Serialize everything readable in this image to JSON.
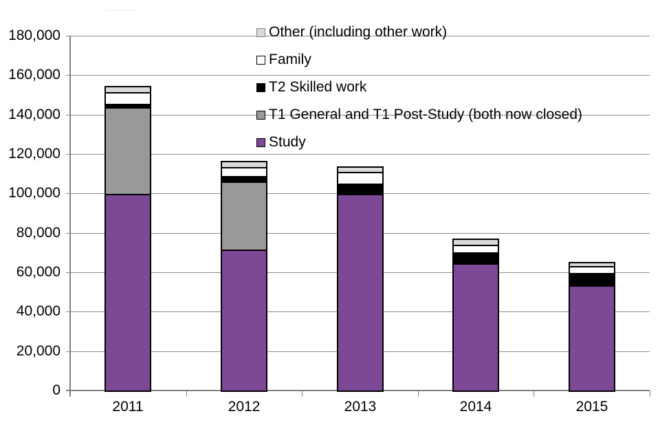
{
  "chart_data": {
    "type": "bar",
    "stacked": true,
    "title": "",
    "xlabel": "",
    "ylabel": "",
    "grid": true,
    "categories": [
      "2011",
      "2012",
      "2013",
      "2014",
      "2015"
    ],
    "series": [
      {
        "name": "Study",
        "color": "#7D4997",
        "values": [
          99500,
          71000,
          99400,
          64300,
          53000
        ]
      },
      {
        "name": "T1 General and T1 Post-Study (both now closed)",
        "color": "#999999",
        "values": [
          43700,
          34800,
          700,
          0,
          0
        ]
      },
      {
        "name": "T2 Skilled work",
        "color": "#000000",
        "values": [
          2000,
          2800,
          4400,
          5600,
          6400
        ]
      },
      {
        "name": "Family",
        "color": "#FFFFFF",
        "values": [
          5900,
          4400,
          6200,
          3800,
          3500
        ]
      },
      {
        "name": "Other (including other work)",
        "color": "#D9D9D9",
        "values": [
          2900,
          2800,
          2200,
          2600,
          1800
        ]
      }
    ],
    "totals": [
      154000,
      115800,
      112900,
      76300,
      64700
    ],
    "y_axis": {
      "min": 0,
      "max": 180000,
      "tick_step": 20000,
      "tick_labels": [
        "0",
        "20,000",
        "40,000",
        "60,000",
        "80,000",
        "100,000",
        "120,000",
        "140,000",
        "160,000",
        "180,000"
      ]
    },
    "legend": {
      "position": "top-right",
      "items": [
        {
          "label": "Other (including other work)",
          "color": "#D9D9D9",
          "border": "#808080"
        },
        {
          "label": "Family",
          "color": "#FFFFFF",
          "border": "#000000"
        },
        {
          "label": "T2 Skilled work",
          "color": "#000000",
          "border": "#000000"
        },
        {
          "label": "T1 General and T1 Post-Study (both now closed)",
          "color": "#999999",
          "border": "#000000"
        },
        {
          "label": "Study",
          "color": "#7D4997",
          "border": "#000000"
        }
      ]
    },
    "colors": {
      "gridline": "#8C8C8C",
      "axis": "#808080",
      "bar_border": "#000000",
      "text": "#000000",
      "background": "#FFFFFF"
    }
  }
}
